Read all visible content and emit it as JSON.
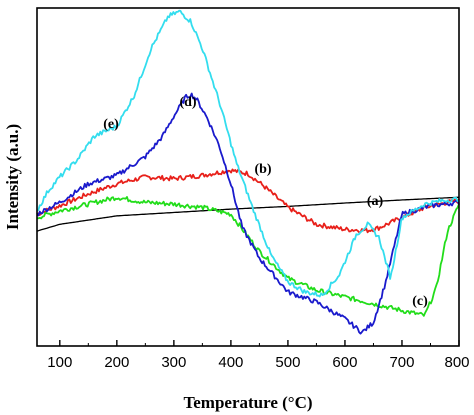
{
  "chart_data": {
    "type": "line",
    "title": "",
    "xlabel": "Temperature (°C)",
    "ylabel": "Intensity (a.u.)",
    "xlim": [
      60,
      800
    ],
    "ylim": [
      0,
      100
    ],
    "xticks": [
      "100",
      "200",
      "300",
      "400",
      "500",
      "600",
      "700",
      "800"
    ],
    "yticks_shown": false,
    "grid": false,
    "legend": "inline labels",
    "series": [
      {
        "name": "(a)",
        "color": "#000000",
        "x": [
          60,
          100,
          200,
          300,
          400,
          500,
          600,
          700,
          800
        ],
        "y": [
          34,
          36,
          38.5,
          39.5,
          40.5,
          41.3,
          42.3,
          43.2,
          44
        ]
      },
      {
        "name": "(b)",
        "color": "#e8201a",
        "x": [
          60,
          100,
          150,
          200,
          250,
          300,
          350,
          400,
          430,
          460,
          500,
          550,
          600,
          640,
          660,
          700,
          740,
          780,
          800
        ],
        "y": [
          39,
          41.5,
          45,
          48,
          50,
          49.5,
          50.5,
          52,
          51,
          47,
          41,
          36,
          34.5,
          34.2,
          35,
          38,
          41,
          42.5,
          43
        ]
      },
      {
        "name": "(c)",
        "color": "#22dd1a",
        "x": [
          60,
          100,
          150,
          200,
          250,
          300,
          350,
          400,
          450,
          500,
          550,
          600,
          650,
          700,
          740,
          760,
          780,
          800
        ],
        "y": [
          38,
          40,
          42,
          44,
          42.5,
          42,
          41,
          39,
          28,
          20,
          16.5,
          14.5,
          12.5,
          10.5,
          9,
          17,
          34,
          42
        ]
      },
      {
        "name": "(d)",
        "color": "#1a1acc",
        "x": [
          60,
          100,
          150,
          200,
          250,
          280,
          300,
          320,
          330,
          340,
          360,
          380,
          400,
          420,
          450,
          500,
          550,
          600,
          630,
          650,
          670,
          700,
          750,
          800
        ],
        "y": [
          39,
          42.5,
          48,
          50.5,
          56,
          62,
          68,
          73.5,
          74.5,
          73,
          67,
          59,
          48,
          35,
          26,
          16,
          13,
          8,
          4,
          7,
          18,
          39,
          41.5,
          42.5
        ]
      },
      {
        "name": "(e)",
        "color": "#33ddee",
        "x": [
          60,
          80,
          100,
          130,
          160,
          200,
          230,
          260,
          290,
          310,
          330,
          350,
          380,
          410,
          440,
          470,
          500,
          530,
          560,
          590,
          620,
          640,
          660,
          680,
          700,
          740,
          770,
          800
        ],
        "y": [
          40,
          46,
          50,
          55,
          62,
          65,
          74,
          88,
          97.5,
          99,
          96,
          88,
          72,
          54,
          40,
          27,
          19,
          16,
          15,
          21,
          33,
          36,
          32,
          20,
          38,
          42,
          43,
          43.5
        ]
      }
    ],
    "annotations": [
      {
        "text": "(a)",
        "series": "(a)"
      },
      {
        "text": "(b)",
        "series": "(b)"
      },
      {
        "text": "(c)",
        "series": "(c)"
      },
      {
        "text": "(d)",
        "series": "(d)"
      },
      {
        "text": "(e)",
        "series": "(e)"
      }
    ]
  }
}
